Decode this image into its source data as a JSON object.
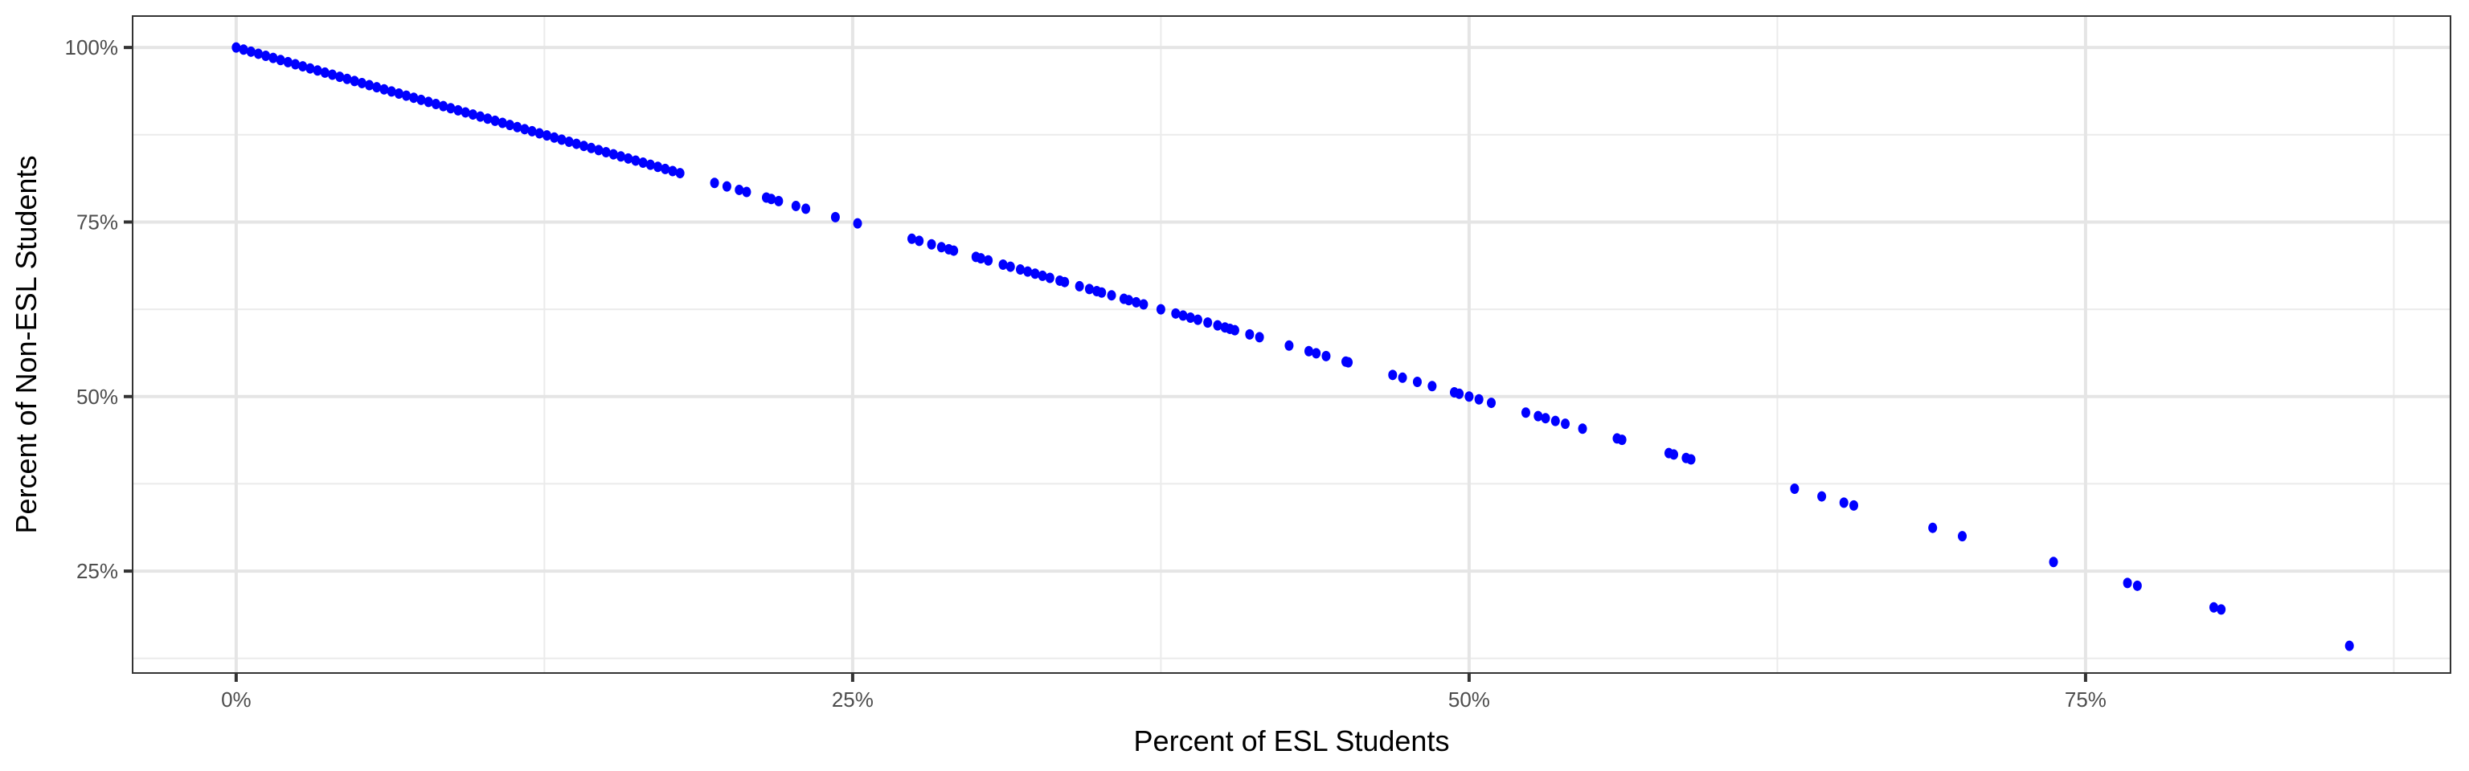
{
  "chart_data": {
    "type": "scatter",
    "title": "",
    "xlabel": "Percent of ESL Students",
    "ylabel": "Percent of Non-ESL Students",
    "xlim": [
      -4.2,
      89.8
    ],
    "ylim": [
      10.4,
      104.5
    ],
    "x_ticks": [
      0,
      25,
      50,
      75
    ],
    "x_tick_labels": [
      "0%",
      "25%",
      "50%",
      "75%"
    ],
    "y_ticks": [
      25,
      50,
      75,
      100
    ],
    "y_tick_labels": [
      "25%",
      "50%",
      "75%",
      "100%"
    ],
    "grid": true,
    "legend": "none",
    "point_color": "#0000FF",
    "points": [
      [
        0,
        100
      ],
      [
        0.3,
        99.7
      ],
      [
        0.6,
        99.4
      ],
      [
        0.9,
        99.1
      ],
      [
        1.2,
        98.8
      ],
      [
        1.5,
        98.5
      ],
      [
        1.8,
        98.2
      ],
      [
        2.1,
        97.9
      ],
      [
        2.4,
        97.6
      ],
      [
        2.7,
        97.3
      ],
      [
        3.0,
        97.0
      ],
      [
        3.3,
        96.7
      ],
      [
        3.6,
        96.4
      ],
      [
        3.9,
        96.1
      ],
      [
        4.2,
        95.8
      ],
      [
        4.5,
        95.5
      ],
      [
        4.8,
        95.2
      ],
      [
        5.1,
        94.9
      ],
      [
        5.4,
        94.6
      ],
      [
        5.7,
        94.3
      ],
      [
        6.0,
        94.0
      ],
      [
        6.3,
        93.7
      ],
      [
        6.6,
        93.4
      ],
      [
        6.9,
        93.1
      ],
      [
        7.2,
        92.8
      ],
      [
        7.5,
        92.5
      ],
      [
        7.8,
        92.2
      ],
      [
        8.1,
        91.9
      ],
      [
        8.4,
        91.6
      ],
      [
        8.7,
        91.3
      ],
      [
        9.0,
        91.0
      ],
      [
        9.3,
        90.7
      ],
      [
        9.6,
        90.4
      ],
      [
        9.9,
        90.1
      ],
      [
        10.2,
        89.8
      ],
      [
        10.5,
        89.5
      ],
      [
        10.8,
        89.2
      ],
      [
        11.1,
        88.9
      ],
      [
        11.4,
        88.6
      ],
      [
        11.7,
        88.3
      ],
      [
        12.0,
        88.0
      ],
      [
        12.3,
        87.7
      ],
      [
        12.6,
        87.4
      ],
      [
        12.9,
        87.1
      ],
      [
        13.2,
        86.8
      ],
      [
        13.5,
        86.5
      ],
      [
        13.8,
        86.2
      ],
      [
        14.1,
        85.9
      ],
      [
        14.4,
        85.6
      ],
      [
        14.7,
        85.3
      ],
      [
        15.0,
        85.0
      ],
      [
        15.3,
        84.7
      ],
      [
        15.6,
        84.4
      ],
      [
        15.9,
        84.1
      ],
      [
        16.2,
        83.8
      ],
      [
        16.5,
        83.5
      ],
      [
        16.8,
        83.2
      ],
      [
        17.1,
        82.9
      ],
      [
        17.4,
        82.6
      ],
      [
        17.7,
        82.3
      ],
      [
        18.0,
        82.0
      ],
      [
        19.4,
        80.6
      ],
      [
        19.9,
        80.1
      ],
      [
        20.4,
        79.6
      ],
      [
        20.7,
        79.3
      ],
      [
        21.5,
        78.5
      ],
      [
        21.7,
        78.3
      ],
      [
        22.0,
        78.0
      ],
      [
        22.7,
        77.3
      ],
      [
        23.1,
        76.9
      ],
      [
        24.3,
        75.7
      ],
      [
        25.2,
        74.8
      ],
      [
        27.4,
        72.6
      ],
      [
        27.7,
        72.3
      ],
      [
        28.2,
        71.8
      ],
      [
        28.6,
        71.4
      ],
      [
        28.9,
        71.1
      ],
      [
        29.1,
        70.9
      ],
      [
        30.0,
        70.0
      ],
      [
        30.2,
        69.8
      ],
      [
        30.5,
        69.5
      ],
      [
        31.1,
        68.9
      ],
      [
        31.4,
        68.6
      ],
      [
        31.8,
        68.2
      ],
      [
        32.1,
        67.9
      ],
      [
        32.4,
        67.6
      ],
      [
        32.7,
        67.3
      ],
      [
        33.0,
        67.0
      ],
      [
        33.4,
        66.6
      ],
      [
        33.6,
        66.4
      ],
      [
        34.2,
        65.8
      ],
      [
        34.6,
        65.4
      ],
      [
        34.9,
        65.1
      ],
      [
        35.1,
        64.9
      ],
      [
        35.5,
        64.5
      ],
      [
        36.0,
        64.0
      ],
      [
        36.2,
        63.8
      ],
      [
        36.5,
        63.5
      ],
      [
        36.8,
        63.2
      ],
      [
        37.5,
        62.5
      ],
      [
        38.1,
        61.9
      ],
      [
        38.4,
        61.6
      ],
      [
        38.7,
        61.3
      ],
      [
        39.0,
        61.0
      ],
      [
        39.4,
        60.6
      ],
      [
        39.8,
        60.2
      ],
      [
        40.1,
        59.9
      ],
      [
        40.3,
        59.7
      ],
      [
        40.5,
        59.5
      ],
      [
        41.1,
        58.9
      ],
      [
        41.5,
        58.5
      ],
      [
        42.7,
        57.3
      ],
      [
        43.5,
        56.5
      ],
      [
        43.8,
        56.2
      ],
      [
        44.2,
        55.8
      ],
      [
        45.0,
        55.0
      ],
      [
        45.1,
        54.9
      ],
      [
        46.9,
        53.1
      ],
      [
        47.3,
        52.7
      ],
      [
        47.9,
        52.1
      ],
      [
        48.5,
        51.5
      ],
      [
        49.4,
        50.6
      ],
      [
        49.6,
        50.4
      ],
      [
        50.0,
        50.0
      ],
      [
        50.4,
        49.6
      ],
      [
        50.9,
        49.1
      ],
      [
        52.3,
        47.7
      ],
      [
        52.8,
        47.2
      ],
      [
        53.1,
        46.9
      ],
      [
        53.5,
        46.5
      ],
      [
        53.9,
        46.1
      ],
      [
        54.6,
        45.4
      ],
      [
        56.0,
        44.0
      ],
      [
        56.2,
        43.8
      ],
      [
        58.1,
        41.9
      ],
      [
        58.3,
        41.7
      ],
      [
        58.8,
        41.2
      ],
      [
        59.0,
        41.0
      ],
      [
        63.2,
        36.8
      ],
      [
        64.3,
        35.7
      ],
      [
        65.2,
        34.8
      ],
      [
        65.6,
        34.4
      ],
      [
        68.8,
        31.2
      ],
      [
        70.0,
        30.0
      ],
      [
        73.7,
        26.3
      ],
      [
        76.7,
        23.3
      ],
      [
        77.1,
        22.9
      ],
      [
        80.2,
        19.8
      ],
      [
        80.5,
        19.5
      ],
      [
        85.7,
        14.3
      ]
    ]
  }
}
